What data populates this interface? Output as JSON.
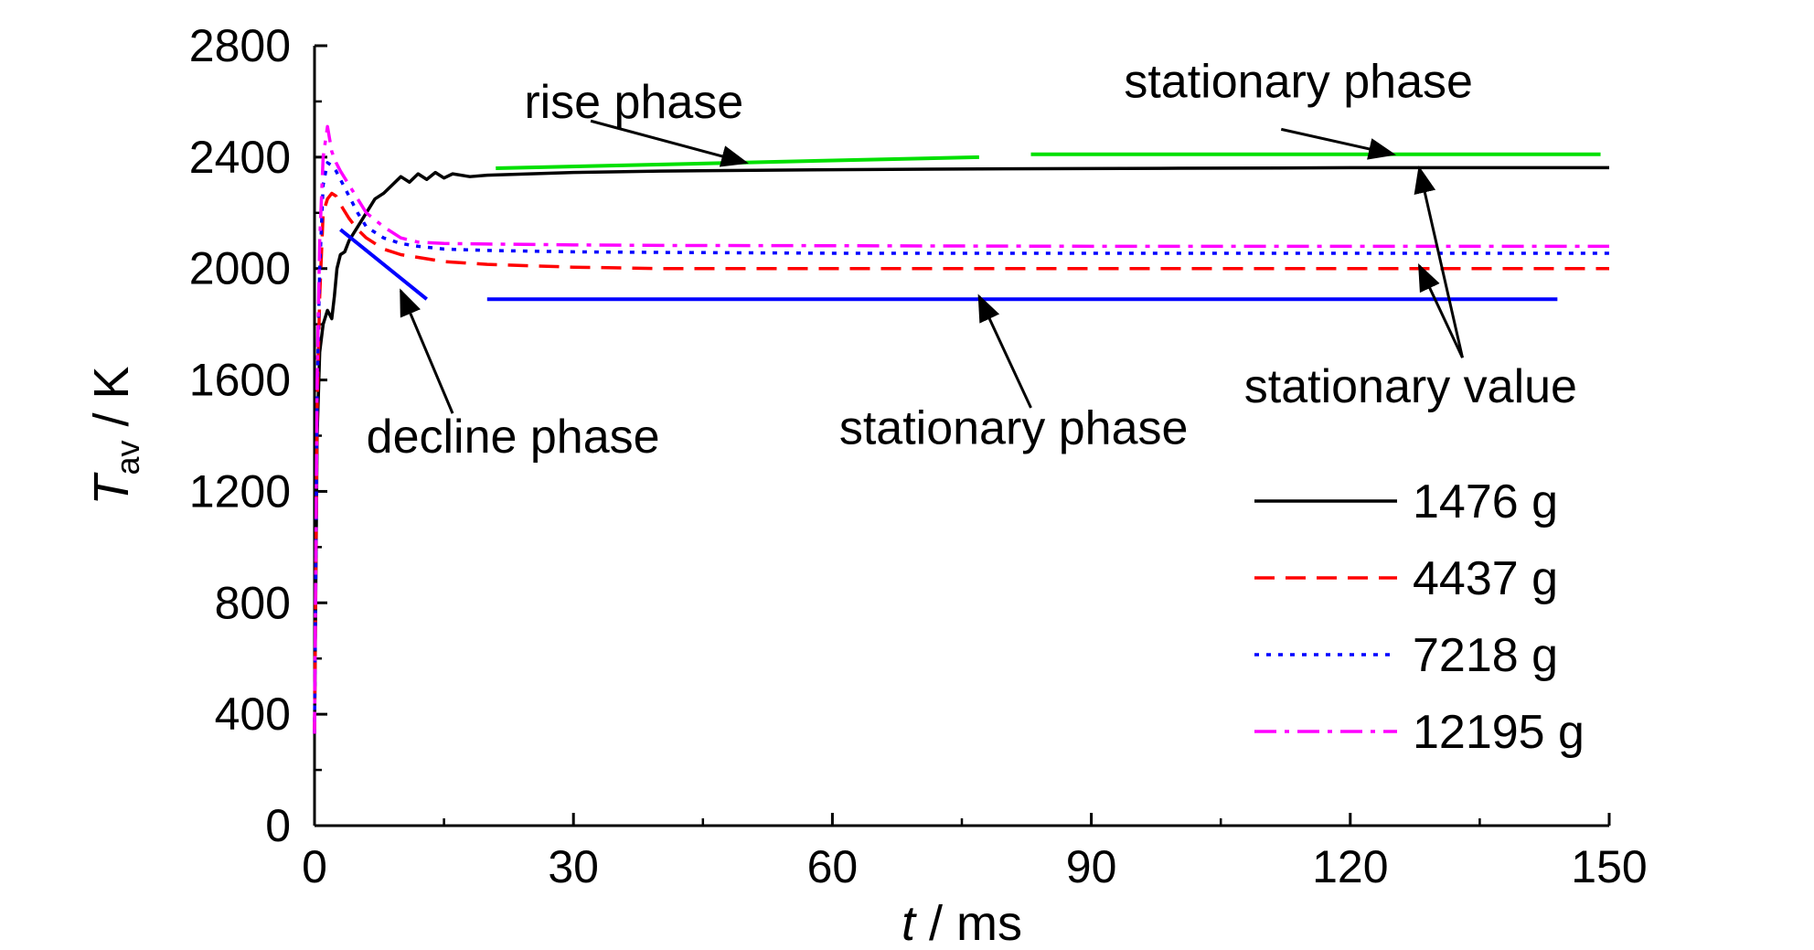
{
  "chart_data": {
    "type": "line",
    "xlabel": {
      "var": "t",
      "unit": " / ms"
    },
    "ylabel": {
      "var": "T",
      "sub": "av",
      "unit": " / K"
    },
    "xlim": [
      0,
      150
    ],
    "ylim": [
      0,
      2800
    ],
    "xticks": [
      0,
      30,
      60,
      90,
      120,
      150
    ],
    "xtick_labels": [
      "0",
      "30",
      "60",
      "90",
      "120",
      "150"
    ],
    "yticks": [
      0,
      400,
      800,
      1200,
      1600,
      2000,
      2400,
      2800
    ],
    "ytick_labels": [
      "0",
      "400",
      "800",
      "1200",
      "1600",
      "2000",
      "2400",
      "2800"
    ],
    "legend_position": "bottom-right",
    "series": [
      {
        "name": "1476 g",
        "color": "#000000",
        "dash": "solid",
        "x": [
          0,
          0.3,
          0.6,
          1.0,
          1.5,
          2.0,
          2.3,
          2.6,
          3.0,
          3.5,
          4.0,
          5.0,
          6.0,
          7.0,
          8.0,
          9.0,
          10.0,
          11.0,
          12.0,
          13.0,
          14.0,
          15.0,
          16.0,
          18.0,
          20.0,
          25.0,
          30.0,
          40.0,
          60.0,
          80.0,
          100.0,
          120.0,
          150.0
        ],
        "y": [
          330,
          1400,
          1700,
          1800,
          1850,
          1820,
          1900,
          2000,
          2050,
          2060,
          2100,
          2150,
          2200,
          2250,
          2270,
          2300,
          2330,
          2310,
          2340,
          2320,
          2345,
          2325,
          2340,
          2330,
          2335,
          2340,
          2345,
          2350,
          2355,
          2358,
          2360,
          2362,
          2362
        ]
      },
      {
        "name": "4437 g",
        "color": "#ff0000",
        "dash": "dashed",
        "x": [
          0,
          0.3,
          0.6,
          1.0,
          1.5,
          2.0,
          2.5,
          3.0,
          4.0,
          5.0,
          6.0,
          8.0,
          10.0,
          12.0,
          15.0,
          20.0,
          30.0,
          40.0,
          60.0,
          90.0,
          120.0,
          150.0
        ],
        "y": [
          330,
          1500,
          1900,
          2200,
          2250,
          2270,
          2260,
          2230,
          2180,
          2140,
          2110,
          2070,
          2050,
          2040,
          2025,
          2015,
          2005,
          2000,
          2000,
          2000,
          2000,
          2000
        ]
      },
      {
        "name": "7218 g",
        "color": "#0000ff",
        "dash": "dotted",
        "x": [
          0,
          0.3,
          0.6,
          1.0,
          1.5,
          2.0,
          2.5,
          3.0,
          4.0,
          5.0,
          6.0,
          8.0,
          10.0,
          12.0,
          15.0,
          20.0,
          30.0,
          40.0,
          60.0,
          90.0,
          120.0,
          150.0
        ],
        "y": [
          330,
          1550,
          2000,
          2300,
          2380,
          2370,
          2350,
          2320,
          2260,
          2200,
          2150,
          2110,
          2090,
          2080,
          2070,
          2065,
          2060,
          2058,
          2055,
          2055,
          2055,
          2055
        ]
      },
      {
        "name": "12195 g",
        "color": "#ff00ff",
        "dash": "dashdot",
        "x": [
          0,
          0.3,
          0.6,
          1.0,
          1.5,
          2.0,
          2.5,
          3.0,
          4.0,
          5.0,
          6.0,
          8.0,
          10.0,
          12.0,
          15.0,
          20.0,
          30.0,
          40.0,
          60.0,
          90.0,
          120.0,
          150.0
        ],
        "y": [
          330,
          1600,
          2100,
          2400,
          2510,
          2420,
          2380,
          2350,
          2300,
          2250,
          2200,
          2150,
          2110,
          2095,
          2090,
          2088,
          2085,
          2083,
          2082,
          2080,
          2080,
          2080
        ]
      }
    ],
    "reference_lines": [
      {
        "color": "#00e000",
        "x": [
          21,
          77
        ],
        "y": [
          2360,
          2400
        ]
      },
      {
        "color": "#00e000",
        "x": [
          83,
          149
        ],
        "y": [
          2410,
          2410
        ]
      },
      {
        "color": "#0000ff",
        "x": [
          3,
          13
        ],
        "y": [
          2140,
          1890
        ]
      },
      {
        "color": "#0000ff",
        "x": [
          20,
          144
        ],
        "y": [
          1890,
          1890
        ]
      }
    ],
    "annotations": [
      {
        "text": "rise phase",
        "text_x": 37,
        "text_y": 2540,
        "arrow_from": [
          32,
          2530
        ],
        "arrow_to": [
          50,
          2380
        ]
      },
      {
        "text": "stationary phase",
        "text_x": 114,
        "text_y": 2615,
        "arrow_from": [
          112,
          2500
        ],
        "arrow_to": [
          125,
          2410
        ]
      },
      {
        "text": "decline phase",
        "text_x": 23,
        "text_y": 1340,
        "arrow_from": [
          16,
          1480
        ],
        "arrow_to": [
          10,
          1920
        ]
      },
      {
        "text": "stationary phase",
        "text_x": 81,
        "text_y": 1370,
        "arrow_from": [
          83,
          1500
        ],
        "arrow_to": [
          77,
          1900
        ]
      },
      {
        "text": "stationary value",
        "text_x": 127,
        "text_y": 1520,
        "arrow_from": [
          133,
          1680
        ],
        "arrow_to": [
          [
            128,
            2010
          ],
          [
            128,
            2360
          ]
        ]
      }
    ]
  }
}
